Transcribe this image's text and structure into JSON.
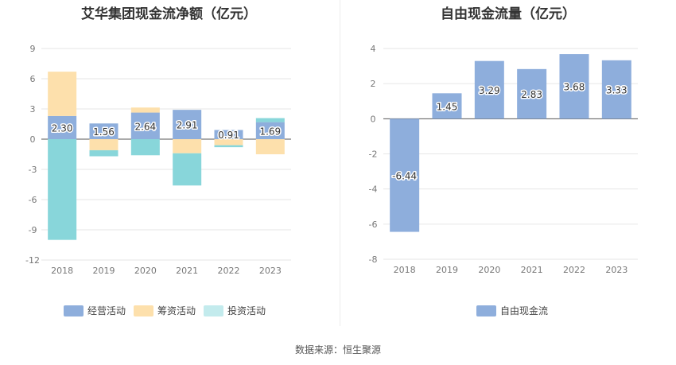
{
  "left_title": "艾华集团现金流净额（亿元）",
  "right_title": "自由现金流量（亿元）",
  "source": "数据来源：恒生聚源",
  "colors": {
    "operating": "#8eaedc",
    "financing": "#fde0ac",
    "investing": "#88d6da",
    "free_cf": "#8eaedc",
    "legend_investing": "#c3ebed"
  },
  "chart_data": [
    {
      "type": "bar",
      "stacked": true,
      "title": "艾华集团现金流净额（亿元）",
      "categories": [
        "2018",
        "2019",
        "2020",
        "2021",
        "2022",
        "2023"
      ],
      "yticks": [
        "9",
        "6",
        "3",
        "0",
        "-3",
        "-6",
        "-9",
        "-12"
      ],
      "ylim": [
        -12,
        9
      ],
      "grid": true,
      "legend_position": "bottom",
      "series": [
        {
          "name": "经营活动",
          "values": [
            2.3,
            1.56,
            2.64,
            2.91,
            0.91,
            1.69
          ],
          "labels": [
            "2.30",
            "1.56",
            "2.64",
            "2.91",
            "0.91",
            "1.69"
          ]
        },
        {
          "name": "筹资活动",
          "values": [
            4.4,
            -1.1,
            0.5,
            -1.4,
            -0.6,
            -1.5
          ]
        },
        {
          "name": "投资活动",
          "values": [
            -10.0,
            -0.6,
            -1.6,
            -3.2,
            -0.2,
            0.4
          ]
        }
      ]
    },
    {
      "type": "bar",
      "title": "自由现金流量（亿元）",
      "categories": [
        "2018",
        "2019",
        "2020",
        "2021",
        "2022",
        "2023"
      ],
      "yticks": [
        "4",
        "2",
        "0",
        "-2",
        "-4",
        "-6",
        "-8"
      ],
      "ylim": [
        -8,
        4
      ],
      "grid": true,
      "legend_position": "bottom",
      "series": [
        {
          "name": "自由现金流",
          "values": [
            -6.44,
            1.45,
            3.29,
            2.83,
            3.68,
            3.33
          ],
          "labels": [
            "-6.44",
            "1.45",
            "3.29",
            "2.83",
            "3.68",
            "3.33"
          ]
        }
      ]
    }
  ]
}
